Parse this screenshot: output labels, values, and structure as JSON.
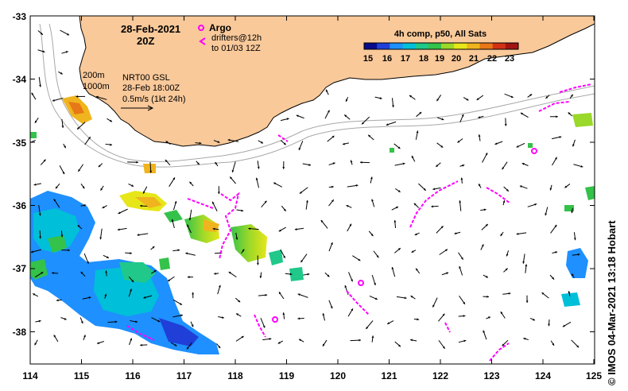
{
  "header": {
    "date": "28-Feb-2021",
    "time": "20Z"
  },
  "argo_legend": {
    "argo_label": "Argo",
    "drifters_label": "drifters@12h",
    "drifters_sub": "to 01/03 12Z"
  },
  "annotations": {
    "depth_200": "200m",
    "depth_1000": "1000m",
    "product": "NRT00 GSL",
    "product_time": "28-Feb 18:00Z",
    "scale": "0.5m/s (1kt 24h)"
  },
  "colorbar": {
    "title": "4h comp, p50, All Sats",
    "ticks": [
      "15",
      "16",
      "17",
      "18",
      "19",
      "20",
      "21",
      "22",
      "23"
    ],
    "colors": [
      "#0a0a8c",
      "#1f3fd8",
      "#1e90ff",
      "#00bfd8",
      "#20c88a",
      "#34c24a",
      "#9ad82a",
      "#e6e619",
      "#f0b41e",
      "#e67817",
      "#d23214",
      "#a01414"
    ]
  },
  "axes": {
    "x_ticks": [
      "114",
      "115",
      "116",
      "117",
      "118",
      "119",
      "120",
      "121",
      "122",
      "123",
      "124",
      "125"
    ],
    "y_ticks": [
      "-33",
      "-34",
      "-35",
      "-36",
      "-37",
      "-38"
    ]
  },
  "credit": "© IMOS 04-Mar-2021 13:18 Hobart",
  "colors": {
    "land": "#f9c99a",
    "argo": "#ff00ff",
    "drifter": "#ff00ff",
    "bathy": "#a8a8a8"
  }
}
